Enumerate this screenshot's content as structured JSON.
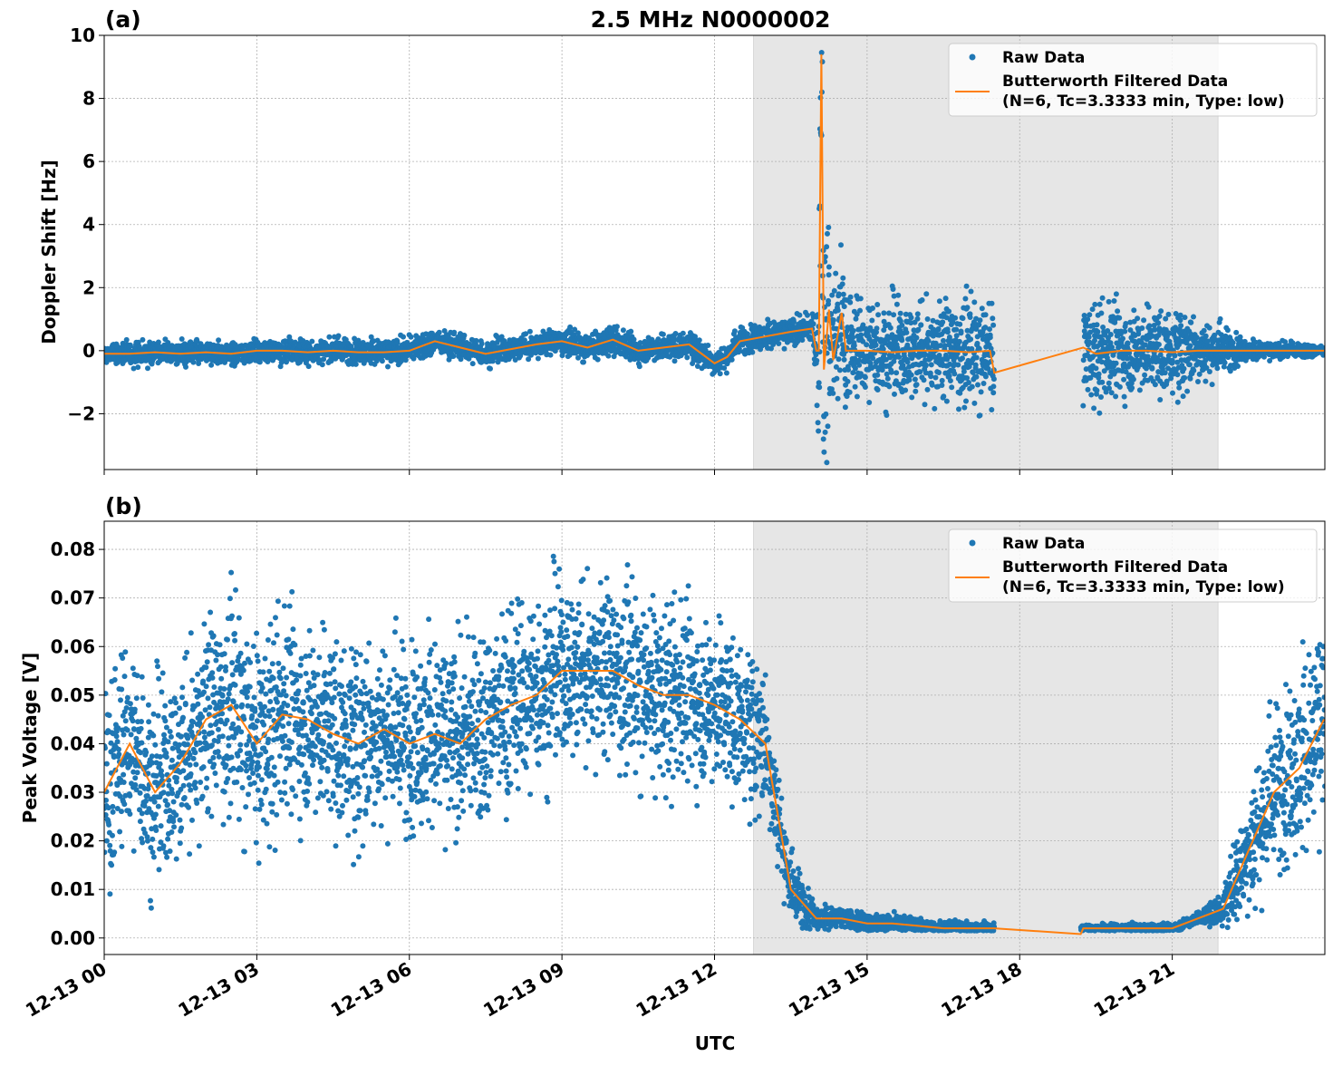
{
  "title": "2.5 MHz N0000002",
  "xlabel": "UTC",
  "x_tick_labels": [
    "12-13 00",
    "12-13 03",
    "12-13 06",
    "12-13 09",
    "12-13 12",
    "12-13 15",
    "12-13 18",
    "12-13 21"
  ],
  "colors": {
    "raw": "#1f77b4",
    "filtered": "#ff7f0e",
    "shade": "#e6e6e6"
  },
  "legend": {
    "raw_label": "Raw Data",
    "filtered_label_1": "Butterworth Filtered Data",
    "filtered_label_2": "(N=6, Tc=3.3333 min, Type: low)",
    "placement": "upper-right"
  },
  "chart_data": [
    {
      "panel_label": "(a)",
      "type": "scatter+line",
      "ylabel": "Doppler Shift [Hz]",
      "xlim": [
        "12-13 00:00",
        "12-13 23:59"
      ],
      "ylim": [
        -3.77,
        10
      ],
      "y_ticks": [
        -2,
        0,
        2,
        4,
        6,
        8,
        10
      ],
      "y_tick_labels": [
        "−2",
        "0",
        "2",
        "4",
        "6",
        "8",
        "10"
      ],
      "grid": true,
      "shaded_span": [
        "12-13 12:46",
        "12-13 21:54"
      ],
      "series": [
        {
          "name": "Butterworth Filtered Data",
          "kind": "line",
          "x": [
            "00:00",
            "00:30",
            "01:00",
            "01:30",
            "02:00",
            "02:30",
            "03:00",
            "03:30",
            "04:00",
            "04:30",
            "05:00",
            "05:30",
            "06:00",
            "06:30",
            "07:00",
            "07:30",
            "08:00",
            "08:30",
            "09:00",
            "09:30",
            "10:00",
            "10:30",
            "11:00",
            "11:30",
            "12:00",
            "12:15",
            "12:30",
            "13:00",
            "13:30",
            "13:55",
            "14:00",
            "14:03",
            "14:06",
            "14:09",
            "14:15",
            "14:20",
            "14:30",
            "14:35",
            "15:00",
            "15:30",
            "16:00",
            "16:30",
            "17:00",
            "17:25",
            "17:30",
            "19:15",
            "19:30",
            "20:00",
            "20:30",
            "21:00",
            "21:30",
            "22:00",
            "22:30",
            "23:00",
            "23:30",
            "23:59"
          ],
          "y": [
            -0.1,
            -0.1,
            -0.05,
            -0.1,
            -0.05,
            -0.1,
            0.0,
            0.0,
            -0.05,
            0.0,
            -0.05,
            -0.05,
            0.0,
            0.3,
            0.1,
            -0.1,
            0.05,
            0.2,
            0.3,
            0.1,
            0.35,
            0.0,
            0.1,
            0.2,
            -0.4,
            -0.2,
            0.3,
            0.45,
            0.6,
            0.7,
            0.0,
            0.0,
            9.4,
            -0.6,
            1.3,
            -0.3,
            1.2,
            0.0,
            0.0,
            -0.05,
            0.0,
            0.0,
            -0.05,
            0.0,
            -0.7,
            0.1,
            -0.1,
            0.0,
            0.0,
            -0.05,
            0.0,
            0.0,
            0.0,
            0.0,
            0.0,
            0.0
          ]
        },
        {
          "name": "Raw Data",
          "kind": "scatter",
          "spread_note_hz": "envelope half-width around filtered value",
          "x": [
            "00:00",
            "12:00",
            "12:46",
            "13:55",
            "14:00",
            "14:06",
            "14:35",
            "17:30",
            "19:15",
            "21:00",
            "21:54",
            "22:30",
            "23:59"
          ],
          "half_width": [
            0.3,
            0.35,
            0.35,
            0.35,
            1.2,
            4.0,
            1.3,
            1.4,
            1.3,
            1.1,
            0.7,
            0.25,
            0.15
          ]
        }
      ]
    },
    {
      "panel_label": "(b)",
      "type": "scatter+line",
      "ylabel": "Peak Voltage [V]",
      "xlim": [
        "12-13 00:00",
        "12-13 23:59"
      ],
      "ylim": [
        -0.0034,
        0.0858
      ],
      "y_ticks": [
        0,
        0.01,
        0.02,
        0.03,
        0.04,
        0.05,
        0.06,
        0.07,
        0.08
      ],
      "y_tick_labels": [
        "0.00",
        "0.01",
        "0.02",
        "0.03",
        "0.04",
        "0.05",
        "0.06",
        "0.07",
        "0.08"
      ],
      "grid": true,
      "shaded_span": [
        "12-13 12:46",
        "12-13 21:54"
      ],
      "series": [
        {
          "name": "Butterworth Filtered Data",
          "kind": "line",
          "x": [
            "00:00",
            "00:30",
            "01:00",
            "01:30",
            "02:00",
            "02:30",
            "03:00",
            "03:30",
            "04:00",
            "04:30",
            "05:00",
            "05:30",
            "06:00",
            "06:30",
            "07:00",
            "07:30",
            "08:00",
            "08:30",
            "09:00",
            "09:30",
            "10:00",
            "10:30",
            "11:00",
            "11:30",
            "12:00",
            "12:30",
            "13:00",
            "13:15",
            "13:30",
            "14:00",
            "14:30",
            "15:00",
            "15:30",
            "16:00",
            "16:30",
            "17:00",
            "17:30",
            "19:12",
            "19:15",
            "19:30",
            "20:00",
            "20:30",
            "21:00",
            "21:30",
            "22:00",
            "22:30",
            "23:00",
            "23:30",
            "23:59"
          ],
          "y": [
            0.03,
            0.04,
            0.03,
            0.036,
            0.045,
            0.048,
            0.04,
            0.046,
            0.045,
            0.042,
            0.04,
            0.043,
            0.04,
            0.042,
            0.04,
            0.045,
            0.048,
            0.05,
            0.055,
            0.055,
            0.055,
            0.052,
            0.05,
            0.05,
            0.048,
            0.045,
            0.04,
            0.025,
            0.01,
            0.004,
            0.004,
            0.003,
            0.003,
            0.0025,
            0.002,
            0.002,
            0.002,
            0.0008,
            0.002,
            0.002,
            0.002,
            0.002,
            0.002,
            0.004,
            0.006,
            0.018,
            0.03,
            0.035,
            0.045
          ]
        },
        {
          "name": "Raw Data",
          "kind": "scatter",
          "x": [
            "00:00",
            "02:30",
            "06:00",
            "09:00",
            "12:00",
            "13:00",
            "13:30",
            "14:00",
            "17:30",
            "19:15",
            "21:30",
            "22:00",
            "22:30",
            "23:59"
          ],
          "half_width": [
            0.016,
            0.018,
            0.016,
            0.016,
            0.015,
            0.012,
            0.006,
            0.002,
            0.001,
            0.0006,
            0.001,
            0.003,
            0.012,
            0.018
          ]
        }
      ]
    }
  ]
}
